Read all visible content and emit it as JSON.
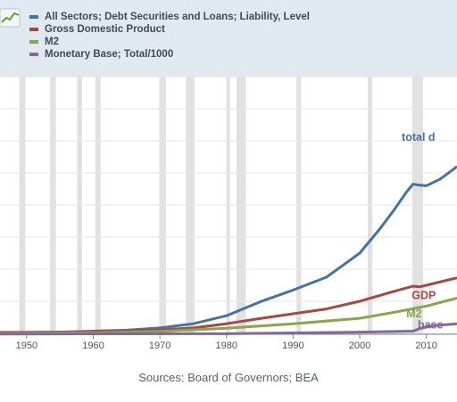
{
  "legend": [
    {
      "label": "All Sectors; Debt Securities and Loans; Liability, Level",
      "color": "#4572a7"
    },
    {
      "label": "Gross Domestic Product",
      "color": "#aa4643"
    },
    {
      "label": "M2",
      "color": "#89a54e"
    },
    {
      "label": "Monetary Base; Total/1000",
      "color": "#80699b"
    }
  ],
  "source": "Sources: Board of Governors; BEA",
  "chart_data": {
    "type": "line",
    "x_ticks": [
      "1950",
      "1960",
      "1970",
      "1980",
      "1990",
      "2000",
      "2010"
    ],
    "xlim": [
      1946,
      2014.6
    ],
    "ylim": [
      0,
      8
    ],
    "grid": true,
    "recessions": [
      [
        1948.9,
        1949.8
      ],
      [
        1953.5,
        1954.4
      ],
      [
        1957.6,
        1958.3
      ],
      [
        1960.3,
        1961.1
      ],
      [
        1969.9,
        1970.9
      ],
      [
        1973.9,
        1975.2
      ],
      [
        1980.0,
        1980.5
      ],
      [
        1981.5,
        1982.9
      ],
      [
        1990.5,
        1991.2
      ],
      [
        2001.2,
        2001.9
      ],
      [
        2007.9,
        2009.5
      ]
    ],
    "annotations": [
      {
        "text": "total d",
        "color": "#4572a7",
        "x": 2006.3,
        "y": 6.0
      },
      {
        "text": "GDP",
        "color": "#aa4643",
        "x": 2007.8,
        "y": 1.07
      },
      {
        "text": "M2",
        "color": "#89a54e",
        "x": 2007.0,
        "y": 0.5
      },
      {
        "text": "base",
        "color": "#80699b",
        "x": 2008.7,
        "y": 0.15
      }
    ],
    "series": [
      {
        "color": "#4572a7",
        "x": [
          1946,
          1955,
          1965,
          1970,
          1975,
          1980,
          1985,
          1990,
          1995,
          2000,
          2003,
          2005,
          2007,
          2008,
          2009,
          2010,
          2011,
          2012,
          2013,
          2014.6
        ],
        "y": [
          0.02,
          0.04,
          0.1,
          0.17,
          0.3,
          0.55,
          0.98,
          1.35,
          1.75,
          2.5,
          3.25,
          3.8,
          4.4,
          4.65,
          4.62,
          4.6,
          4.7,
          4.8,
          4.95,
          5.2
        ]
      },
      {
        "color": "#aa4643",
        "x": [
          1946,
          1955,
          1965,
          1970,
          1975,
          1980,
          1985,
          1990,
          1995,
          2000,
          2005,
          2008,
          2009,
          2010,
          2014.6
        ],
        "y": [
          0.03,
          0.04,
          0.07,
          0.11,
          0.17,
          0.3,
          0.46,
          0.61,
          0.76,
          1.0,
          1.3,
          1.47,
          1.45,
          1.5,
          1.73
        ]
      },
      {
        "color": "#89a54e",
        "x": [
          1946,
          1960,
          1970,
          1980,
          1990,
          2000,
          2005,
          2008,
          2010,
          2014.6
        ],
        "y": [
          0.0,
          0.02,
          0.06,
          0.16,
          0.3,
          0.47,
          0.65,
          0.77,
          0.85,
          1.1
        ]
      },
      {
        "color": "#80699b",
        "x": [
          1946,
          1980,
          2000,
          2008,
          2009,
          2011,
          2014.6
        ],
        "y": [
          -0.02,
          -0.01,
          0.04,
          0.07,
          0.15,
          0.24,
          0.3
        ]
      }
    ]
  }
}
